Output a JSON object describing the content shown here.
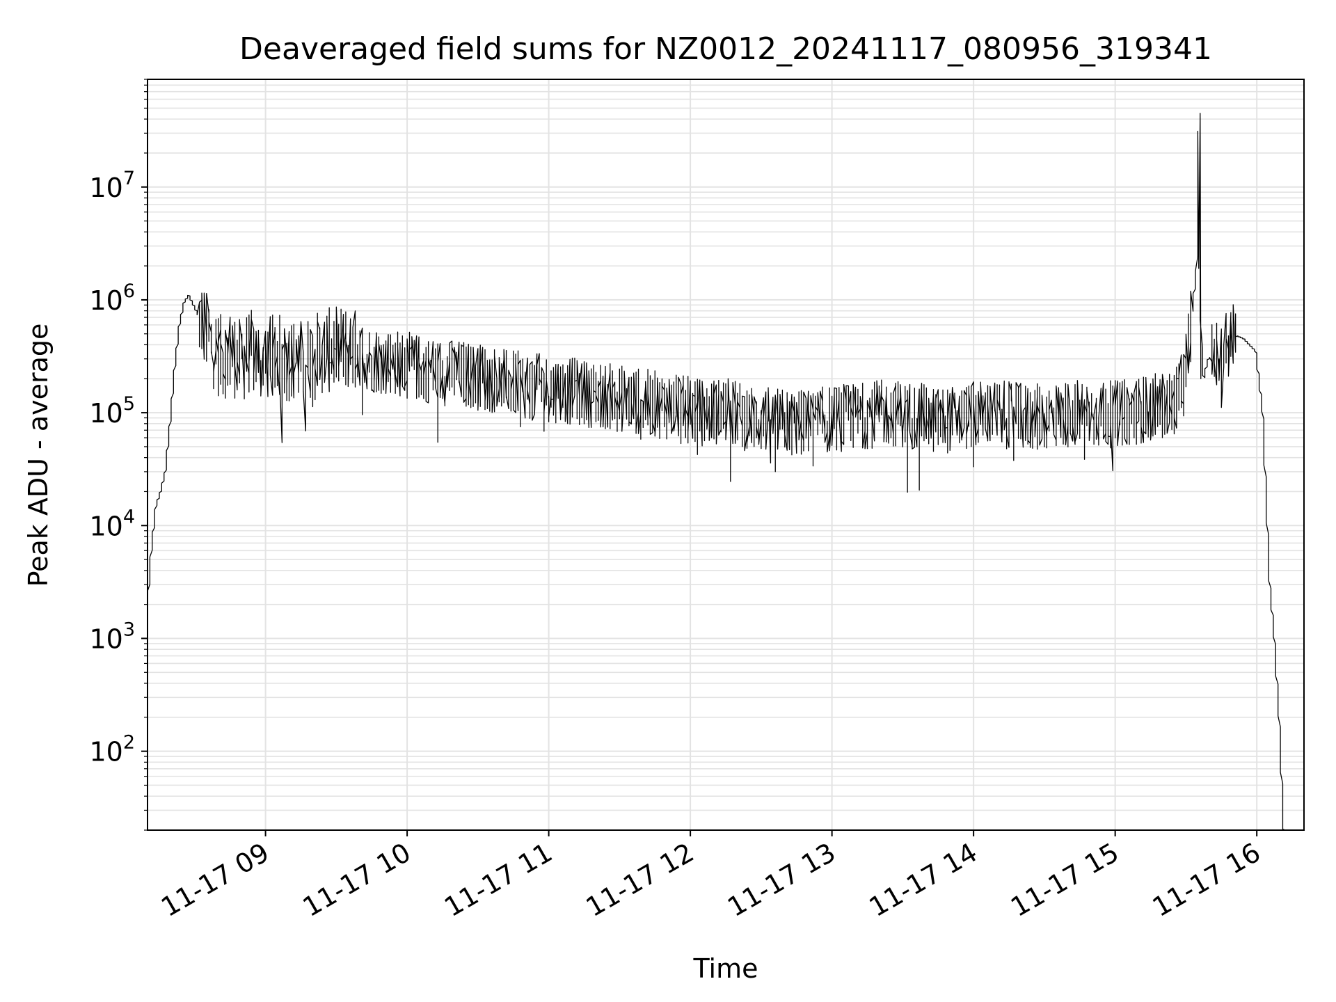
{
  "chart_data": {
    "type": "line",
    "title": "Deaveraged field sums for NZ0012_20241117_080956_319341",
    "xlabel": "Time",
    "ylabel": "Peak ADU - average",
    "yscale": "log",
    "grid": true,
    "line_color": "#000000",
    "grid_color": "#e3e3e3",
    "xlim": [
      "2024-11-17 08:10",
      "2024-11-17 16:20"
    ],
    "ylim": [
      20,
      90000000
    ],
    "x_ticks": [
      {
        "label": "11-17 09",
        "value": "2024-11-17 09:00"
      },
      {
        "label": "11-17 10",
        "value": "2024-11-17 10:00"
      },
      {
        "label": "11-17 11",
        "value": "2024-11-17 11:00"
      },
      {
        "label": "11-17 12",
        "value": "2024-11-17 12:00"
      },
      {
        "label": "11-17 13",
        "value": "2024-11-17 13:00"
      },
      {
        "label": "11-17 14",
        "value": "2024-11-17 14:00"
      },
      {
        "label": "11-17 15",
        "value": "2024-11-17 15:00"
      },
      {
        "label": "11-17 16",
        "value": "2024-11-17 16:00"
      }
    ],
    "y_ticks": [
      {
        "base": "10",
        "exp": "2",
        "value": 100
      },
      {
        "base": "10",
        "exp": "3",
        "value": 1000
      },
      {
        "base": "10",
        "exp": "4",
        "value": 10000
      },
      {
        "base": "10",
        "exp": "5",
        "value": 100000
      },
      {
        "base": "10",
        "exp": "6",
        "value": 1000000
      },
      {
        "base": "10",
        "exp": "7",
        "value": 10000000
      }
    ],
    "series": [
      {
        "x": [
          "2024-11-17 08:10",
          "2024-11-17 08:12",
          "2024-11-17 08:14",
          "2024-11-17 08:16",
          "2024-11-17 08:18",
          "2024-11-17 08:20",
          "2024-11-17 08:22",
          "2024-11-17 08:24",
          "2024-11-17 08:26",
          "2024-11-17 08:28",
          "2024-11-17 08:30",
          "2024-11-17 08:34",
          "2024-11-17 08:38",
          "2024-11-17 08:42",
          "2024-11-17 08:46",
          "2024-11-17 08:50",
          "2024-11-17 08:54",
          "2024-11-17 08:58",
          "2024-11-17 09:05",
          "2024-11-17 09:15",
          "2024-11-17 09:25",
          "2024-11-17 09:35",
          "2024-11-17 09:45",
          "2024-11-17 09:55",
          "2024-11-17 10:05",
          "2024-11-17 10:15",
          "2024-11-17 10:25",
          "2024-11-17 10:35",
          "2024-11-17 10:45",
          "2024-11-17 10:55",
          "2024-11-17 11:05",
          "2024-11-17 11:15",
          "2024-11-17 11:25",
          "2024-11-17 11:35",
          "2024-11-17 11:45",
          "2024-11-17 11:55",
          "2024-11-17 12:05",
          "2024-11-17 12:15",
          "2024-11-17 12:25",
          "2024-11-17 12:35",
          "2024-11-17 12:45",
          "2024-11-17 12:55",
          "2024-11-17 13:05",
          "2024-11-17 13:15",
          "2024-11-17 13:25",
          "2024-11-17 13:35",
          "2024-11-17 13:45",
          "2024-11-17 13:55",
          "2024-11-17 14:05",
          "2024-11-17 14:15",
          "2024-11-17 14:25",
          "2024-11-17 14:35",
          "2024-11-17 14:45",
          "2024-11-17 14:55",
          "2024-11-17 15:05",
          "2024-11-17 15:15",
          "2024-11-17 15:25",
          "2024-11-17 15:30",
          "2024-11-17 15:35",
          "2024-11-17 15:36",
          "2024-11-17 15:37",
          "2024-11-17 15:38",
          "2024-11-17 15:39",
          "2024-11-17 15:40",
          "2024-11-17 15:45",
          "2024-11-17 15:50",
          "2024-11-17 15:55",
          "2024-11-17 16:00",
          "2024-11-17 16:03",
          "2024-11-17 16:06",
          "2024-11-17 16:08",
          "2024-11-17 16:10",
          "2024-11-17 16:12",
          "2024-11-17 16:14"
        ],
        "y": [
          1500,
          6000,
          15000,
          20000,
          30000,
          80000,
          250000,
          600000,
          950000,
          1100000,
          900000,
          600000,
          400000,
          300000,
          350000,
          280000,
          350000,
          300000,
          320000,
          280000,
          350000,
          380000,
          300000,
          280000,
          250000,
          230000,
          220000,
          200000,
          180000,
          170000,
          160000,
          150000,
          140000,
          130000,
          120000,
          110000,
          100000,
          105000,
          90000,
          85000,
          80000,
          85000,
          90000,
          95000,
          100000,
          95000,
          85000,
          90000,
          100000,
          95000,
          90000,
          95000,
          100000,
          95000,
          100000,
          110000,
          120000,
          200000,
          1900000,
          45000000,
          400000,
          200000,
          250000,
          300000,
          350000,
          500000,
          450000,
          350000,
          100000,
          3000,
          1000,
          200,
          20,
          20
        ]
      }
    ]
  }
}
